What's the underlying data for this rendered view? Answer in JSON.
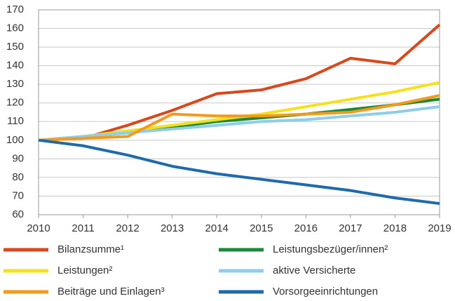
{
  "chart_data": {
    "type": "line",
    "x": [
      2010,
      2011,
      2012,
      2013,
      2014,
      2015,
      2016,
      2017,
      2018,
      2019
    ],
    "series": [
      {
        "name": "Bilanzsumme¹",
        "color": "#d9481c",
        "values": [
          100,
          101,
          108,
          116,
          125,
          127,
          133,
          144,
          141,
          162
        ]
      },
      {
        "name": "Leistungsbezüger/innen²",
        "color": "#1a8a3a",
        "values": [
          100,
          102,
          104,
          107,
          110,
          112,
          114,
          116.5,
          119,
          122
        ]
      },
      {
        "name": "Leistungen²",
        "color": "#f5e11a",
        "values": [
          100,
          102,
          105,
          108,
          111,
          114,
          118,
          122,
          126,
          131
        ]
      },
      {
        "name": "aktive Versicherte",
        "color": "#8fcdec",
        "values": [
          100,
          102,
          104,
          106,
          108,
          110,
          111,
          113,
          115,
          118
        ]
      },
      {
        "name": "Beiträge und Einlagen³",
        "color": "#f39a1c",
        "values": [
          100,
          101,
          102,
          114,
          113,
          113,
          114,
          115,
          119,
          124
        ]
      },
      {
        "name": "Vorsorgeeinrichtungen",
        "color": "#1e6aaa",
        "values": [
          100,
          97,
          92,
          86,
          82,
          79,
          76,
          73,
          69,
          66
        ]
      }
    ],
    "xlim": [
      2010,
      2019
    ],
    "xticks": [
      2010,
      2011,
      2012,
      2013,
      2014,
      2015,
      2016,
      2017,
      2018,
      2019
    ],
    "ylim": [
      60,
      170
    ],
    "yticks": [
      60,
      70,
      80,
      90,
      100,
      110,
      120,
      130,
      140,
      150,
      160,
      170
    ],
    "grid": true,
    "legend": "bottom"
  }
}
